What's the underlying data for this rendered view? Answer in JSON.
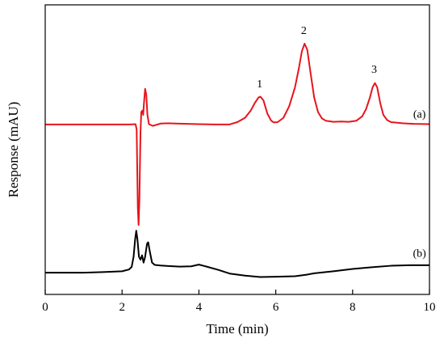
{
  "chart_data": {
    "type": "line",
    "title": "",
    "xlabel": "Time (min)",
    "ylabel": "Response (mAU)",
    "xlim": [
      0,
      10
    ],
    "ylim": [
      0,
      100
    ],
    "x_ticks": [
      0,
      2,
      4,
      6,
      8,
      10
    ],
    "y_ticks_shown": false,
    "grid": false,
    "series": [
      {
        "name": "(a)",
        "color": "#e8141b",
        "points": [
          [
            0,
            58.7
          ],
          [
            2.2,
            58.7
          ],
          [
            2.35,
            58.8
          ],
          [
            2.38,
            57.0
          ],
          [
            2.41,
            30.0
          ],
          [
            2.43,
            24.0
          ],
          [
            2.45,
            32.0
          ],
          [
            2.48,
            56.0
          ],
          [
            2.5,
            63.0
          ],
          [
            2.53,
            63.5
          ],
          [
            2.55,
            62.0
          ],
          [
            2.57,
            66.0
          ],
          [
            2.6,
            71.0
          ],
          [
            2.63,
            69.0
          ],
          [
            2.66,
            62.0
          ],
          [
            2.7,
            58.8
          ],
          [
            2.8,
            58.2
          ],
          [
            3.0,
            59.0
          ],
          [
            3.2,
            59.1
          ],
          [
            3.4,
            59.0
          ],
          [
            3.7,
            58.9
          ],
          [
            4.0,
            58.8
          ],
          [
            4.4,
            58.7
          ],
          [
            4.8,
            58.7
          ],
          [
            5.0,
            59.5
          ],
          [
            5.2,
            61.0
          ],
          [
            5.35,
            63.5
          ],
          [
            5.45,
            66.0
          ],
          [
            5.55,
            68.0
          ],
          [
            5.6,
            68.3
          ],
          [
            5.68,
            67.0
          ],
          [
            5.78,
            62.5
          ],
          [
            5.88,
            60.0
          ],
          [
            5.95,
            59.4
          ],
          [
            6.05,
            59.5
          ],
          [
            6.2,
            61.0
          ],
          [
            6.35,
            65.0
          ],
          [
            6.5,
            71.5
          ],
          [
            6.6,
            78.0
          ],
          [
            6.68,
            84.0
          ],
          [
            6.75,
            86.6
          ],
          [
            6.82,
            84.5
          ],
          [
            6.9,
            77.0
          ],
          [
            7.0,
            68.0
          ],
          [
            7.1,
            63.0
          ],
          [
            7.2,
            60.8
          ],
          [
            7.3,
            60.0
          ],
          [
            7.5,
            59.6
          ],
          [
            7.7,
            59.7
          ],
          [
            7.9,
            59.6
          ],
          [
            8.1,
            60.0
          ],
          [
            8.25,
            61.5
          ],
          [
            8.35,
            64.0
          ],
          [
            8.45,
            68.0
          ],
          [
            8.52,
            71.5
          ],
          [
            8.58,
            73.0
          ],
          [
            8.64,
            71.5
          ],
          [
            8.72,
            66.0
          ],
          [
            8.8,
            62.0
          ],
          [
            8.9,
            60.2
          ],
          [
            9.0,
            59.5
          ],
          [
            9.3,
            59.1
          ],
          [
            9.6,
            58.9
          ],
          [
            10,
            58.8
          ]
        ]
      },
      {
        "name": "(b)",
        "color": "#000000",
        "points": [
          [
            0,
            7.5
          ],
          [
            1.0,
            7.5
          ],
          [
            1.5,
            7.7
          ],
          [
            2.0,
            8.0
          ],
          [
            2.18,
            8.6
          ],
          [
            2.25,
            9.5
          ],
          [
            2.3,
            13.0
          ],
          [
            2.34,
            19.0
          ],
          [
            2.37,
            22.0
          ],
          [
            2.4,
            19.0
          ],
          [
            2.44,
            13.0
          ],
          [
            2.48,
            12.0
          ],
          [
            2.52,
            13.5
          ],
          [
            2.56,
            11.0
          ],
          [
            2.6,
            13.0
          ],
          [
            2.65,
            17.5
          ],
          [
            2.68,
            18.0
          ],
          [
            2.72,
            15.0
          ],
          [
            2.78,
            11.0
          ],
          [
            2.85,
            10.2
          ],
          [
            3.0,
            10.0
          ],
          [
            3.2,
            9.8
          ],
          [
            3.5,
            9.6
          ],
          [
            3.8,
            9.7
          ],
          [
            4.0,
            10.3
          ],
          [
            4.2,
            9.6
          ],
          [
            4.5,
            8.5
          ],
          [
            4.8,
            7.2
          ],
          [
            5.2,
            6.5
          ],
          [
            5.6,
            6.0
          ],
          [
            6.0,
            6.1
          ],
          [
            6.5,
            6.3
          ],
          [
            6.8,
            6.8
          ],
          [
            7.0,
            7.3
          ],
          [
            7.5,
            8.0
          ],
          [
            8.0,
            8.8
          ],
          [
            8.5,
            9.4
          ],
          [
            9.0,
            9.9
          ],
          [
            9.5,
            10.1
          ],
          [
            10,
            10.1
          ]
        ]
      }
    ],
    "annotations": [
      {
        "text": "1",
        "x": 5.58,
        "y": 71.5
      },
      {
        "text": "2",
        "x": 6.73,
        "y": 90.0
      },
      {
        "text": "3",
        "x": 8.56,
        "y": 76.5
      },
      {
        "text": "(a)",
        "x": 9.74,
        "y": 61.0
      },
      {
        "text": "(b)",
        "x": 9.74,
        "y": 13.0
      }
    ]
  }
}
